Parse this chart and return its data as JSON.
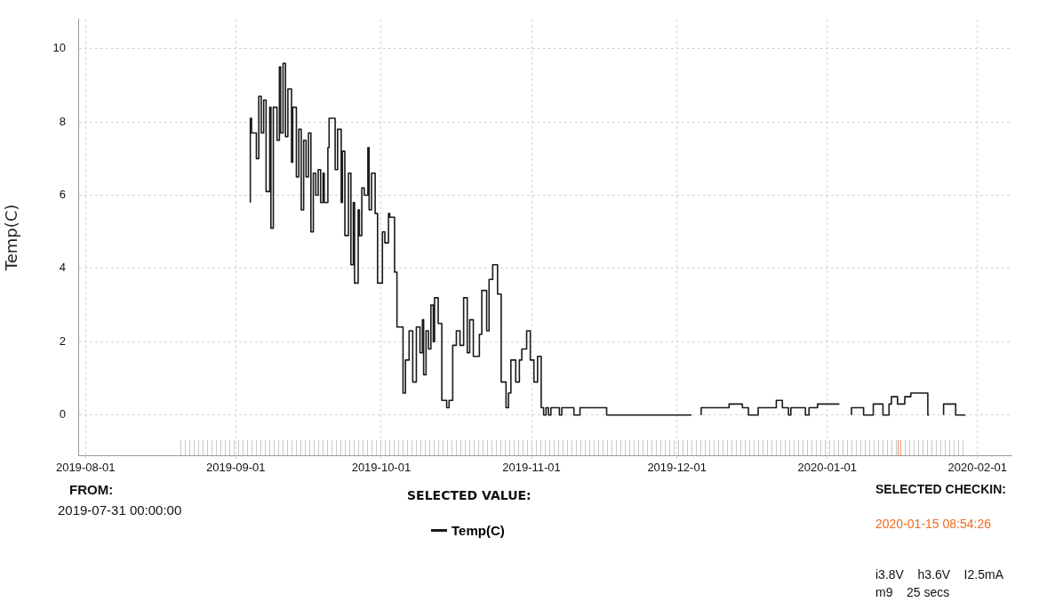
{
  "chart_data": {
    "type": "step",
    "ylabel": "Temp(C)",
    "legend": "bottom",
    "grid": true,
    "xlim": [
      "2019-07-30T12:00",
      "2020-02-08T00:00"
    ],
    "xticks": [
      "2019-08-01",
      "2019-09-01",
      "2019-10-01",
      "2019-11-01",
      "2019-12-01",
      "2020-01-01",
      "2020-02-01"
    ],
    "ylim": [
      -1.1,
      10.8
    ],
    "yticks": [
      0,
      2,
      4,
      6,
      8,
      10
    ],
    "annotations": [
      "FROM:",
      "2019-07-31 00:00:00",
      "SELECTED VALUE:",
      "SELECTED CHECKIN:",
      "2020-01-15 08:54:26",
      "i3.8V    h3.6V    I2.5mA",
      "m9    25 secs"
    ],
    "x": [
      "2019-09-04T00:00",
      "2019-09-04T06:00",
      "2019-09-05T06:00",
      "2019-09-05T18:00",
      "2019-09-06T06:00",
      "2019-09-06T18:00",
      "2019-09-07T06:00",
      "2019-09-08T00:00",
      "2019-09-08T06:00",
      "2019-09-08T18:00",
      "2019-09-09T12:00",
      "2019-09-10T00:00",
      "2019-09-10T06:00",
      "2019-09-10T18:00",
      "2019-09-11T06:00",
      "2019-09-11T18:00",
      "2019-09-12T12:00",
      "2019-09-12T18:00",
      "2019-09-13T12:00",
      "2019-09-14T00:00",
      "2019-09-14T12:00",
      "2019-09-15T00:00",
      "2019-09-15T12:00",
      "2019-09-16T00:00",
      "2019-09-16T12:00",
      "2019-09-17T00:00",
      "2019-09-17T12:00",
      "2019-09-18T00:00",
      "2019-09-18T12:00",
      "2019-09-19T00:00",
      "2019-09-19T06:00",
      "2019-09-20T00:00",
      "2019-09-20T06:00",
      "2019-09-21T12:00",
      "2019-09-22T00:00",
      "2019-09-22T18:00",
      "2019-09-23T00:00",
      "2019-09-23T12:00",
      "2019-09-24T06:00",
      "2019-09-24T18:00",
      "2019-09-25T06:00",
      "2019-09-25T12:00",
      "2019-09-26T06:00",
      "2019-09-26T12:00",
      "2019-09-27T00:00",
      "2019-09-27T12:00",
      "2019-09-28T06:00",
      "2019-09-28T12:00",
      "2019-09-29T00:00",
      "2019-09-29T18:00",
      "2019-09-30T06:00",
      "2019-10-01T06:00",
      "2019-10-01T18:00",
      "2019-10-02T12:00",
      "2019-10-02T18:00",
      "2019-10-03T18:00",
      "2019-10-04T06:00",
      "2019-10-05T12:00",
      "2019-10-06T00:00",
      "2019-10-06T18:00",
      "2019-10-07T12:00",
      "2019-10-08T06:00",
      "2019-10-09T00:00",
      "2019-10-09T12:00",
      "2019-10-09T18:00",
      "2019-10-10T06:00",
      "2019-10-10T18:00",
      "2019-10-11T06:00",
      "2019-10-11T18:00",
      "2019-10-12T00:00",
      "2019-10-12T18:00",
      "2019-10-13T12:00",
      "2019-10-14T12:00",
      "2019-10-15T00:00",
      "2019-10-15T18:00",
      "2019-10-16T12:00",
      "2019-10-17T06:00",
      "2019-10-18T00:00",
      "2019-10-18T18:00",
      "2019-10-19T06:00",
      "2019-10-20T00:00",
      "2019-10-21T06:00",
      "2019-10-21T18:00",
      "2019-10-22T18:00",
      "2019-10-23T06:00",
      "2019-10-24T00:00",
      "2019-10-25T00:00",
      "2019-10-25T18:00",
      "2019-10-26T18:00",
      "2019-10-27T06:00",
      "2019-10-27T18:00",
      "2019-10-28T18:00",
      "2019-10-29T12:00",
      "2019-10-30T00:00",
      "2019-10-31T00:00",
      "2019-10-31T18:00",
      "2019-11-01T12:00",
      "2019-11-02T06:00",
      "2019-11-03T00:00",
      "2019-11-03T12:00",
      "2019-11-04T00:00",
      "2019-11-04T12:00",
      "2019-11-05T00:00",
      "2019-11-06T18:00",
      "2019-11-07T06:00",
      "2019-11-09T18:00",
      "2019-11-11T00:00",
      "2019-11-16T12:00",
      "2019-11-17T12:00",
      "2019-12-04T00:00",
      "2019-12-05T00:00",
      "2019-12-06T00:00",
      "2019-12-11T18:00",
      "2019-12-14T12:00",
      "2019-12-15T18:00",
      "2019-12-17T18:00",
      "2019-12-21T12:00",
      "2019-12-22T18:00",
      "2019-12-24T00:00",
      "2019-12-24T12:00",
      "2019-12-27T12:00",
      "2019-12-28T06:00",
      "2019-12-30T00:00",
      "2019-12-31T06:00",
      "2020-01-03T12:00",
      "2020-01-04T18:00",
      "2020-01-06T00:00",
      "2020-01-08T12:00",
      "2020-01-10T12:00",
      "2020-01-12T12:00",
      "2020-01-13T18:00",
      "2020-01-14T06:00",
      "2020-01-15T12:00",
      "2020-01-17T00:00",
      "2020-01-18T06:00",
      "2020-01-21T18:00",
      "2020-01-22T00:00",
      "2020-01-23T06:00",
      "2020-01-25T00:00",
      "2020-01-27T12:00",
      "2020-01-29T12:00"
    ],
    "series": [
      {
        "name": "Temp(C)",
        "color": "#1a1a1a",
        "values": [
          5.8,
          8.1,
          7.7,
          7.0,
          8.7,
          7.7,
          8.6,
          6.1,
          8.4,
          5.1,
          8.4,
          7.5,
          9.5,
          7.7,
          9.6,
          7.6,
          8.9,
          6.9,
          8.4,
          6.5,
          7.8,
          5.6,
          7.5,
          6.5,
          7.7,
          5.0,
          6.6,
          6.0,
          6.7,
          5.8,
          6.6,
          5.8,
          7.3,
          8.1,
          6.7,
          7.8,
          5.8,
          7.2,
          4.9,
          6.6,
          4.1,
          5.8,
          3.6,
          5.6,
          4.9,
          6.2,
          6.0,
          7.3,
          5.6,
          6.6,
          5.5,
          3.6,
          5.0,
          4.7,
          5.5,
          5.4,
          3.9,
          2.4,
          0.6,
          1.5,
          2.3,
          0.9,
          2.4,
          1.7,
          2.6,
          1.1,
          2.3,
          1.8,
          3.0,
          2.0,
          3.2,
          2.5,
          0.4,
          0.2,
          0.4,
          1.9,
          2.3,
          1.9,
          3.2,
          1.7,
          2.6,
          1.6,
          2.2,
          3.4,
          2.3,
          3.7,
          4.1,
          3.3,
          0.9,
          0.2,
          0.6,
          1.5,
          0.9,
          1.5,
          1.8,
          2.3,
          1.5,
          0.9,
          1.6,
          0.2,
          0,
          0.2,
          0,
          0.2,
          0,
          0.2,
          0,
          0.2,
          0,
          0,
          null,
          0,
          0.2,
          0.3,
          0.2,
          0,
          0.2,
          0.4,
          0.2,
          0,
          0.2,
          0,
          0.2,
          0.3,
          0.3,
          null,
          0,
          0.2,
          0,
          0.3,
          0,
          0.3,
          0.5,
          0.3,
          0.5,
          0.6,
          0,
          null,
          0,
          0.3,
          0
        ]
      }
    ]
  }
}
